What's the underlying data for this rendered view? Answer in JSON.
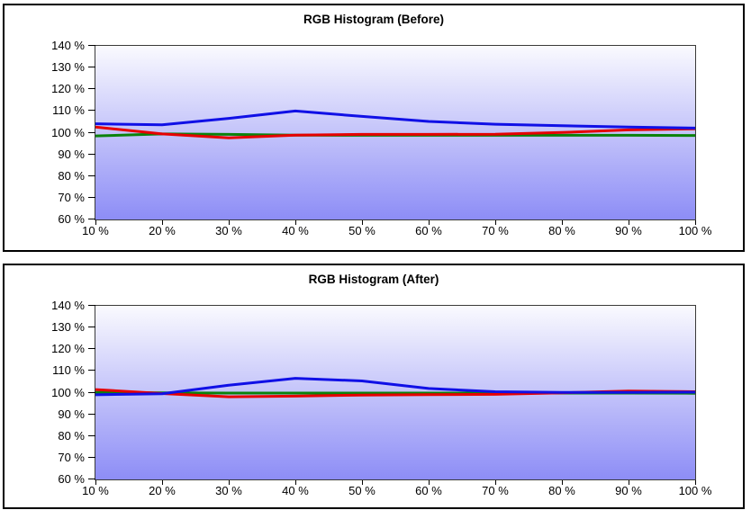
{
  "page": {
    "background": "#ffffff",
    "panel_border_color": "#000000"
  },
  "chart_data": [
    {
      "type": "line",
      "title": "RGB Histogram (Before)",
      "xlabel": "",
      "ylabel": "",
      "grid": false,
      "legend": "none",
      "xlim": [
        10,
        100
      ],
      "ylim": [
        60,
        140
      ],
      "x": [
        10,
        20,
        30,
        40,
        50,
        60,
        70,
        80,
        90,
        100
      ],
      "x_tick_labels": [
        "10 %",
        "20 %",
        "30 %",
        "40 %",
        "50 %",
        "60 %",
        "70 %",
        "80 %",
        "90 %",
        "100 %"
      ],
      "y_ticks": [
        140,
        130,
        120,
        110,
        100,
        90,
        80,
        70,
        60
      ],
      "y_tick_labels": [
        "140 %",
        "130 %",
        "120 %",
        "110 %",
        "100 %",
        "90 %",
        "80 %",
        "70 %",
        "60 %"
      ],
      "plot_bg_top": "#fafafe",
      "plot_bg_bottom": "#8d8df6",
      "series": [
        {
          "name": "red",
          "color": "#e60000",
          "values": [
            102.6,
            99.4,
            97.6,
            98.9,
            99.2,
            99.2,
            99.3,
            100.1,
            101.3,
            101.8
          ]
        },
        {
          "name": "green",
          "color": "#0b820b",
          "values": [
            98.5,
            99.4,
            99.2,
            98.9,
            98.8,
            98.8,
            98.8,
            98.8,
            98.8,
            98.7
          ]
        },
        {
          "name": "blue",
          "color": "#1010e6",
          "values": [
            104.1,
            103.6,
            106.6,
            110.0,
            107.5,
            105.2,
            103.9,
            103.2,
            102.6,
            102.1
          ]
        }
      ]
    },
    {
      "type": "line",
      "title": "RGB Histogram (After)",
      "xlabel": "",
      "ylabel": "",
      "grid": false,
      "legend": "none",
      "xlim": [
        10,
        100
      ],
      "ylim": [
        60,
        140
      ],
      "x": [
        10,
        20,
        30,
        40,
        50,
        60,
        70,
        80,
        90,
        100
      ],
      "x_tick_labels": [
        "10 %",
        "20 %",
        "30 %",
        "40 %",
        "50 %",
        "60 %",
        "70 %",
        "80 %",
        "90 %",
        "100 %"
      ],
      "y_ticks": [
        140,
        130,
        120,
        110,
        100,
        90,
        80,
        70,
        60
      ],
      "y_tick_labels": [
        "140 %",
        "130 %",
        "120 %",
        "110 %",
        "100 %",
        "90 %",
        "80 %",
        "70 %",
        "60 %"
      ],
      "plot_bg_top": "#fafafe",
      "plot_bg_bottom": "#8d8df6",
      "series": [
        {
          "name": "red",
          "color": "#e60000",
          "values": [
            101.4,
            99.6,
            98.1,
            98.4,
            98.9,
            99.1,
            99.2,
            99.9,
            100.7,
            100.4
          ]
        },
        {
          "name": "green",
          "color": "#0b820b",
          "values": [
            100.1,
            99.9,
            99.8,
            99.8,
            99.8,
            99.8,
            99.8,
            99.8,
            99.8,
            99.7
          ]
        },
        {
          "name": "blue",
          "color": "#1010e6",
          "values": [
            99.0,
            99.5,
            103.4,
            106.6,
            105.4,
            101.9,
            100.4,
            100.1,
            100.1,
            100.2
          ]
        }
      ]
    }
  ]
}
